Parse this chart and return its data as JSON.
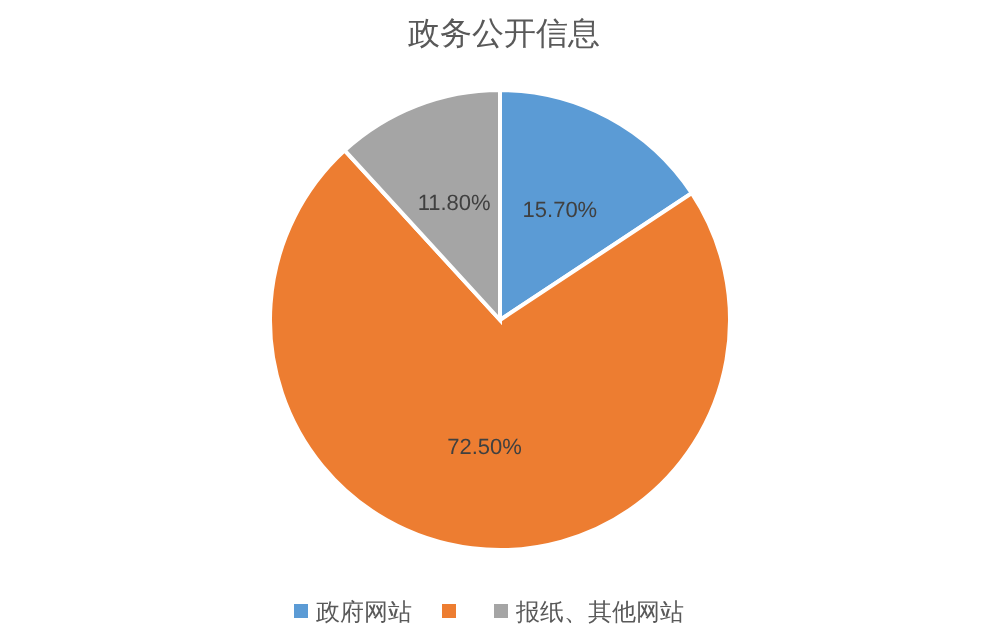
{
  "chart_data": {
    "type": "pie",
    "title": "政务公开信息",
    "categories": [
      "政府网站",
      null,
      "报纸、其他网站"
    ],
    "values": [
      15.7,
      72.5,
      11.8
    ],
    "colors": [
      "#5b9bd5",
      "#ed7d31",
      "#a5a5a5"
    ],
    "value_labels": [
      "15.70%",
      "72.50%",
      "11.80%"
    ],
    "legend": "bottom"
  }
}
